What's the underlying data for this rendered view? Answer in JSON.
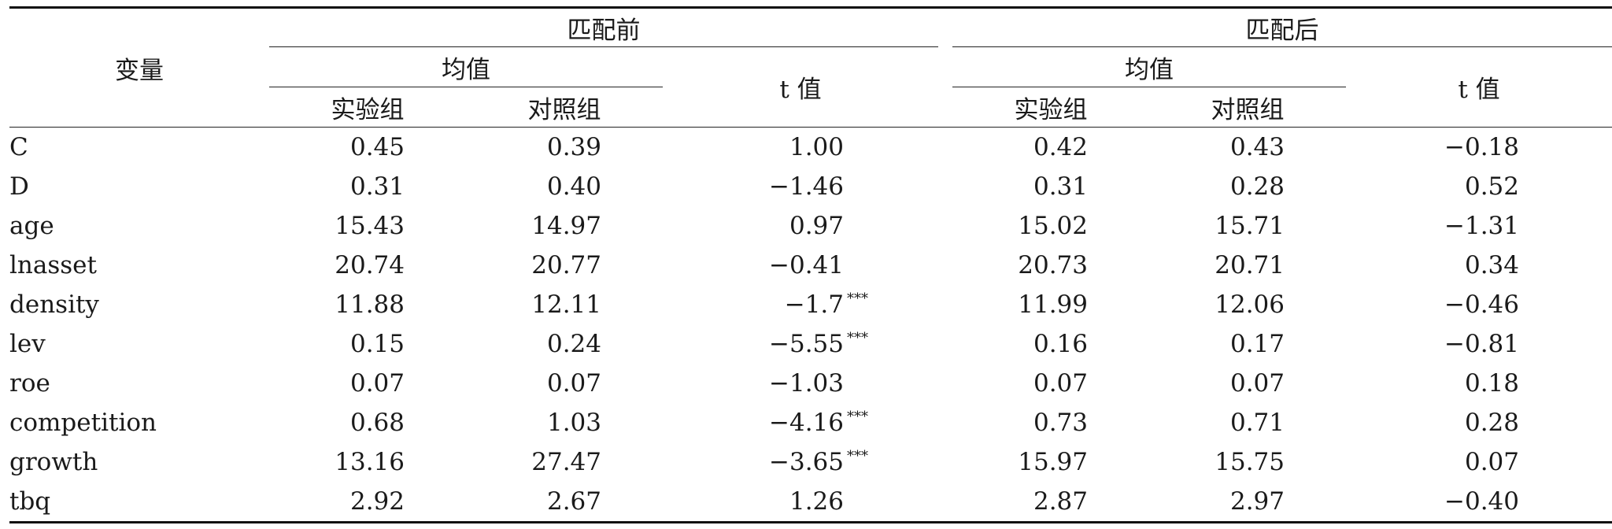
{
  "table": {
    "header": {
      "variable": "变量",
      "before": "匹配前",
      "after": "匹配后",
      "mean": "均值",
      "t_value": "t 值",
      "treatment": "实验组",
      "control": "对照组"
    },
    "rows": [
      {
        "var": "C",
        "b_treat": "0.45",
        "b_ctrl": "0.39",
        "b_t": "1.00",
        "b_sig": "",
        "a_treat": "0.42",
        "a_ctrl": "0.43",
        "a_t": "−0.18"
      },
      {
        "var": "D",
        "b_treat": "0.31",
        "b_ctrl": "0.40",
        "b_t": "−1.46",
        "b_sig": "",
        "a_treat": "0.31",
        "a_ctrl": "0.28",
        "a_t": "0.52"
      },
      {
        "var": "age",
        "b_treat": "15.43",
        "b_ctrl": "14.97",
        "b_t": "0.97",
        "b_sig": "",
        "a_treat": "15.02",
        "a_ctrl": "15.71",
        "a_t": "−1.31"
      },
      {
        "var": "lnasset",
        "b_treat": "20.74",
        "b_ctrl": "20.77",
        "b_t": "−0.41",
        "b_sig": "",
        "a_treat": "20.73",
        "a_ctrl": "20.71",
        "a_t": "0.34"
      },
      {
        "var": "density",
        "b_treat": "11.88",
        "b_ctrl": "12.11",
        "b_t": "−1.7",
        "b_sig": "***",
        "a_treat": "11.99",
        "a_ctrl": "12.06",
        "a_t": "−0.46"
      },
      {
        "var": "lev",
        "b_treat": "0.15",
        "b_ctrl": "0.24",
        "b_t": "−5.55",
        "b_sig": "***",
        "a_treat": "0.16",
        "a_ctrl": "0.17",
        "a_t": "−0.81"
      },
      {
        "var": "roe",
        "b_treat": "0.07",
        "b_ctrl": "0.07",
        "b_t": "−1.03",
        "b_sig": "",
        "a_treat": "0.07",
        "a_ctrl": "0.07",
        "a_t": "0.18"
      },
      {
        "var": "competition",
        "b_treat": "0.68",
        "b_ctrl": "1.03",
        "b_t": "−4.16",
        "b_sig": "***",
        "a_treat": "0.73",
        "a_ctrl": "0.71",
        "a_t": "0.28"
      },
      {
        "var": "growth",
        "b_treat": "13.16",
        "b_ctrl": "27.47",
        "b_t": "−3.65",
        "b_sig": "***",
        "a_treat": "15.97",
        "a_ctrl": "15.75",
        "a_t": "0.07"
      },
      {
        "var": "tbq",
        "b_treat": "2.92",
        "b_ctrl": "2.67",
        "b_t": "1.26",
        "b_sig": "",
        "a_treat": "2.87",
        "a_ctrl": "2.97",
        "a_t": "−0.40"
      }
    ]
  }
}
